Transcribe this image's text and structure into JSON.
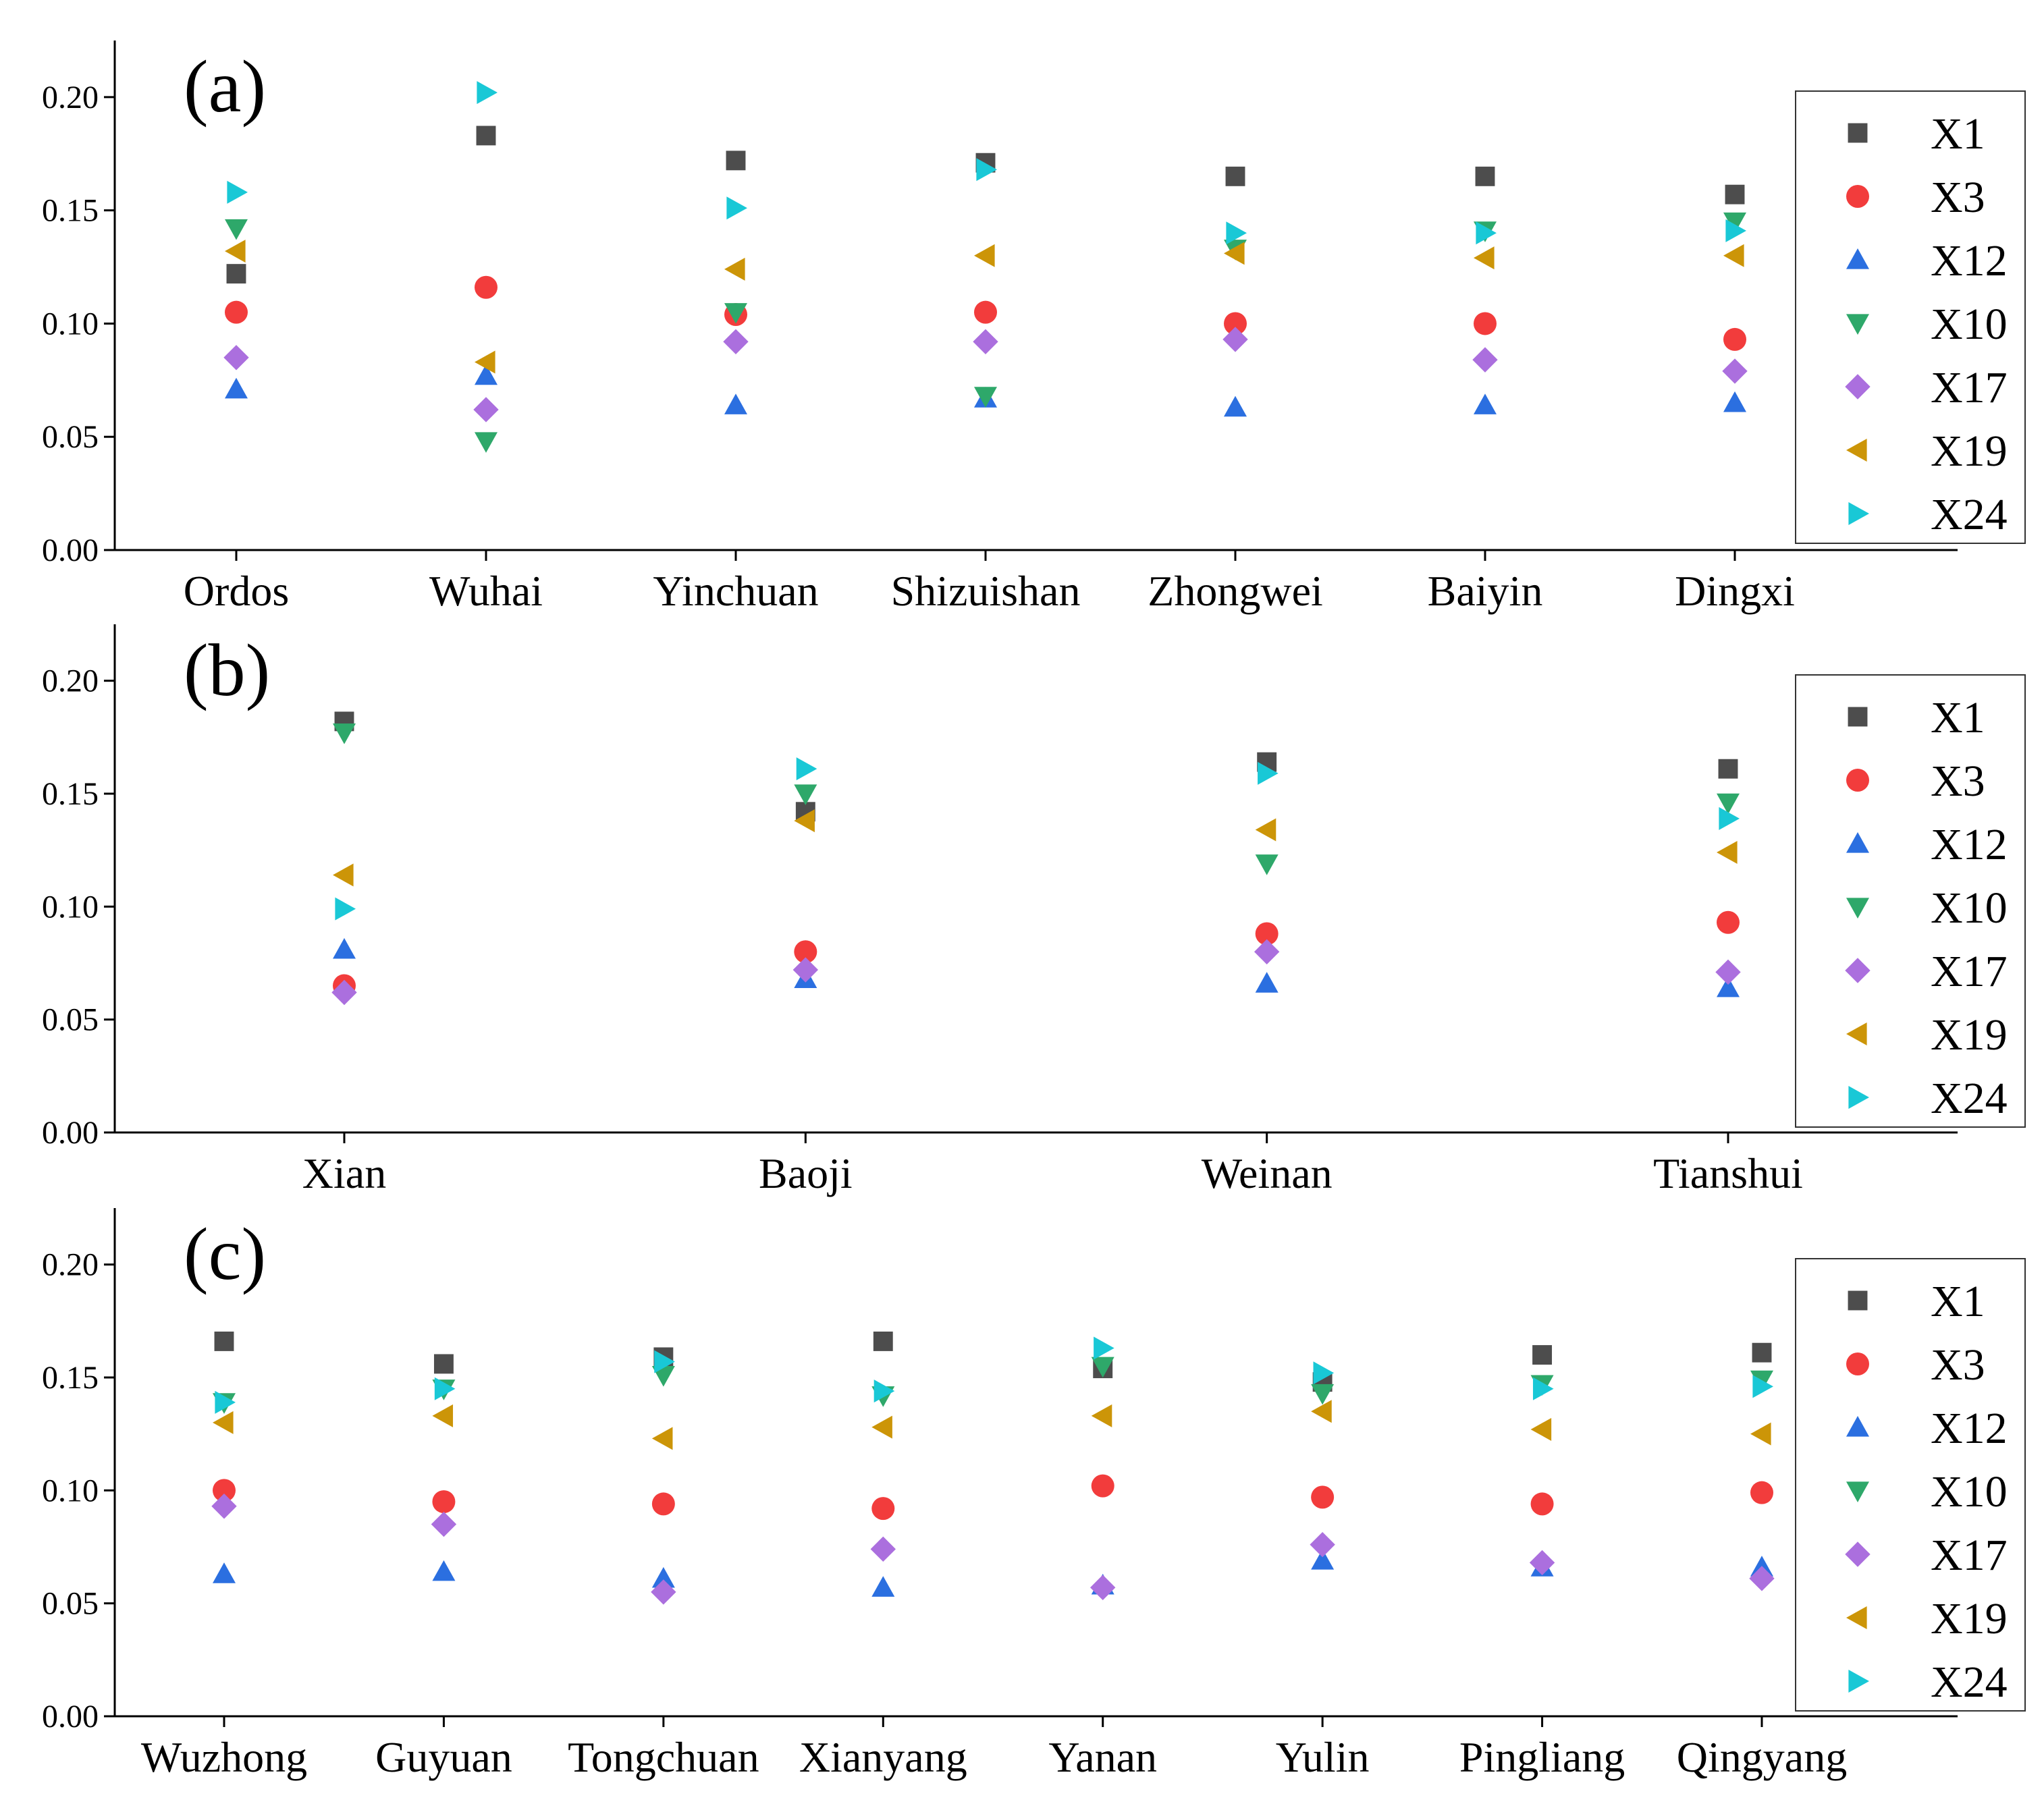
{
  "series_styles": [
    {
      "name": "X1",
      "marker": "square",
      "color": "#4d4d4d"
    },
    {
      "name": "X3",
      "marker": "circle",
      "color": "#f23c3c"
    },
    {
      "name": "X12",
      "marker": "triangle-up",
      "color": "#2b6fe0"
    },
    {
      "name": "X10",
      "marker": "triangle-down",
      "color": "#2ea86a"
    },
    {
      "name": "X17",
      "marker": "diamond",
      "color": "#ab6fde"
    },
    {
      "name": "X19",
      "marker": "triangle-left",
      "color": "#cc9508"
    },
    {
      "name": "X24",
      "marker": "triangle-right",
      "color": "#19c8d6"
    }
  ],
  "chart_data": [
    {
      "type": "scatter",
      "panel_label": "(a)",
      "categories": [
        "Ordos",
        "Wuhai",
        "Yinchuan",
        "Shizuishan",
        "Zhongwei",
        "Baiyin",
        "Dingxi"
      ],
      "ylim": [
        0,
        0.225
      ],
      "yticks": [
        "0.00",
        "0.05",
        "0.10",
        "0.15",
        "0.20"
      ],
      "legend_position": "right",
      "series": [
        {
          "name": "X1",
          "values": [
            0.122,
            0.183,
            0.172,
            0.171,
            0.165,
            0.165,
            0.157
          ]
        },
        {
          "name": "X3",
          "values": [
            0.105,
            0.116,
            0.104,
            0.105,
            0.1,
            0.1,
            0.093
          ]
        },
        {
          "name": "X12",
          "values": [
            0.071,
            0.077,
            0.064,
            0.067,
            0.063,
            0.064,
            0.065
          ]
        },
        {
          "name": "X10",
          "values": [
            0.142,
            0.048,
            0.105,
            0.068,
            0.133,
            0.141,
            0.145
          ]
        },
        {
          "name": "X17",
          "values": [
            0.085,
            0.062,
            0.092,
            0.092,
            0.093,
            0.084,
            0.079
          ]
        },
        {
          "name": "X19",
          "values": [
            0.132,
            0.083,
            0.124,
            0.13,
            0.131,
            0.129,
            0.13
          ]
        },
        {
          "name": "X24",
          "values": [
            0.158,
            0.202,
            0.151,
            0.168,
            0.14,
            0.14,
            0.141
          ]
        }
      ]
    },
    {
      "type": "scatter",
      "panel_label": "(b)",
      "categories": [
        "Xian",
        "Baoji",
        "Weinan",
        "Tianshui"
      ],
      "ylim": [
        0,
        0.225
      ],
      "yticks": [
        "0.00",
        "0.05",
        "0.10",
        "0.15",
        "0.20"
      ],
      "legend_position": "right",
      "series": [
        {
          "name": "X1",
          "values": [
            0.182,
            0.142,
            0.164,
            0.161
          ]
        },
        {
          "name": "X3",
          "values": [
            0.065,
            0.08,
            0.088,
            0.093
          ]
        },
        {
          "name": "X12",
          "values": [
            0.081,
            0.068,
            0.066,
            0.064
          ]
        },
        {
          "name": "X10",
          "values": [
            0.177,
            0.15,
            0.119,
            0.146
          ]
        },
        {
          "name": "X17",
          "values": [
            0.062,
            0.072,
            0.08,
            0.071
          ]
        },
        {
          "name": "X19",
          "values": [
            0.114,
            0.138,
            0.134,
            0.124
          ]
        },
        {
          "name": "X24",
          "values": [
            0.099,
            0.161,
            0.159,
            0.139
          ]
        }
      ]
    },
    {
      "type": "scatter",
      "panel_label": "(c)",
      "categories": [
        "Wuzhong",
        "Guyuan",
        "Tongchuan",
        "Xianyang",
        "Yanan",
        "Yulin",
        "Pingliang",
        "Qingyang"
      ],
      "ylim": [
        0,
        0.225
      ],
      "yticks": [
        "0.00",
        "0.05",
        "0.10",
        "0.15",
        "0.20"
      ],
      "legend_position": "right",
      "series": [
        {
          "name": "X1",
          "values": [
            0.166,
            0.156,
            0.159,
            0.166,
            0.154,
            0.148,
            0.16,
            0.161
          ]
        },
        {
          "name": "X3",
          "values": [
            0.1,
            0.095,
            0.094,
            0.092,
            0.102,
            0.097,
            0.094,
            0.099
          ]
        },
        {
          "name": "X12",
          "values": [
            0.063,
            0.064,
            0.061,
            0.057,
            0.058,
            0.069,
            0.066,
            0.066
          ]
        },
        {
          "name": "X10",
          "values": [
            0.139,
            0.145,
            0.151,
            0.142,
            0.155,
            0.143,
            0.147,
            0.149
          ]
        },
        {
          "name": "X17",
          "values": [
            0.093,
            0.085,
            0.055,
            0.074,
            0.057,
            0.076,
            0.068,
            0.061
          ]
        },
        {
          "name": "X19",
          "values": [
            0.13,
            0.133,
            0.123,
            0.128,
            0.133,
            0.135,
            0.127,
            0.125
          ]
        },
        {
          "name": "X24",
          "values": [
            0.139,
            0.145,
            0.157,
            0.144,
            0.163,
            0.152,
            0.145,
            0.146
          ]
        }
      ]
    }
  ]
}
